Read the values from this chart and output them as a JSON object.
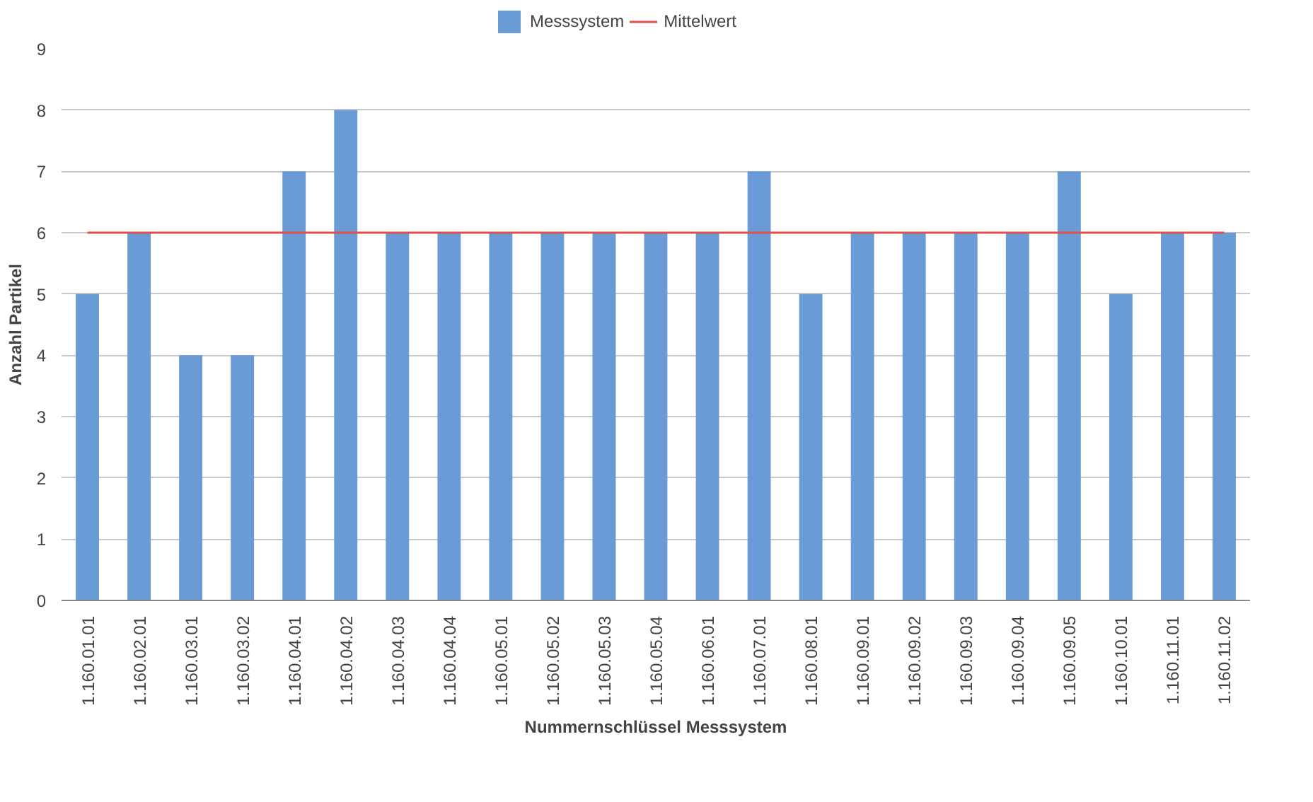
{
  "chart_data": {
    "type": "bar",
    "xlabel": "Nummernschlüssel Messsystem",
    "ylabel": "Anzahl Partikel",
    "categories": [
      "1.160.01.01",
      "1.160.02.01",
      "1.160.03.01",
      "1.160.03.02",
      "1.160.04.01",
      "1.160.04.02",
      "1.160.04.03",
      "1.160.04.04",
      "1.160.05.01",
      "1.160.05.02",
      "1.160.05.03",
      "1.160.05.04",
      "1.160.06.01",
      "1.160.07.01",
      "1.160.08.01",
      "1.160.09.01",
      "1.160.09.02",
      "1.160.09.03",
      "1.160.09.04",
      "1.160.09.05",
      "1.160.10.01",
      "1.160.11.01",
      "1.160.11.02"
    ],
    "series": [
      {
        "name": "Messsystem",
        "color": "#6a9bd6",
        "values": [
          5,
          6,
          4,
          4,
          7,
          8,
          6,
          6,
          6,
          6,
          6,
          6,
          6,
          7,
          5,
          6,
          6,
          6,
          6,
          7,
          5,
          6,
          6
        ]
      },
      {
        "name": "Mittelwert",
        "type": "line",
        "color": "#e0504a",
        "values": [
          6,
          6,
          6,
          6,
          6,
          6,
          6,
          6,
          6,
          6,
          6,
          6,
          6,
          6,
          6,
          6,
          6,
          6,
          6,
          6,
          6,
          6,
          6
        ]
      }
    ],
    "ylim": [
      0,
      9
    ],
    "yticks": [
      0,
      1,
      2,
      3,
      4,
      5,
      6,
      7,
      8,
      9
    ],
    "grid": "y",
    "legend": "top"
  }
}
